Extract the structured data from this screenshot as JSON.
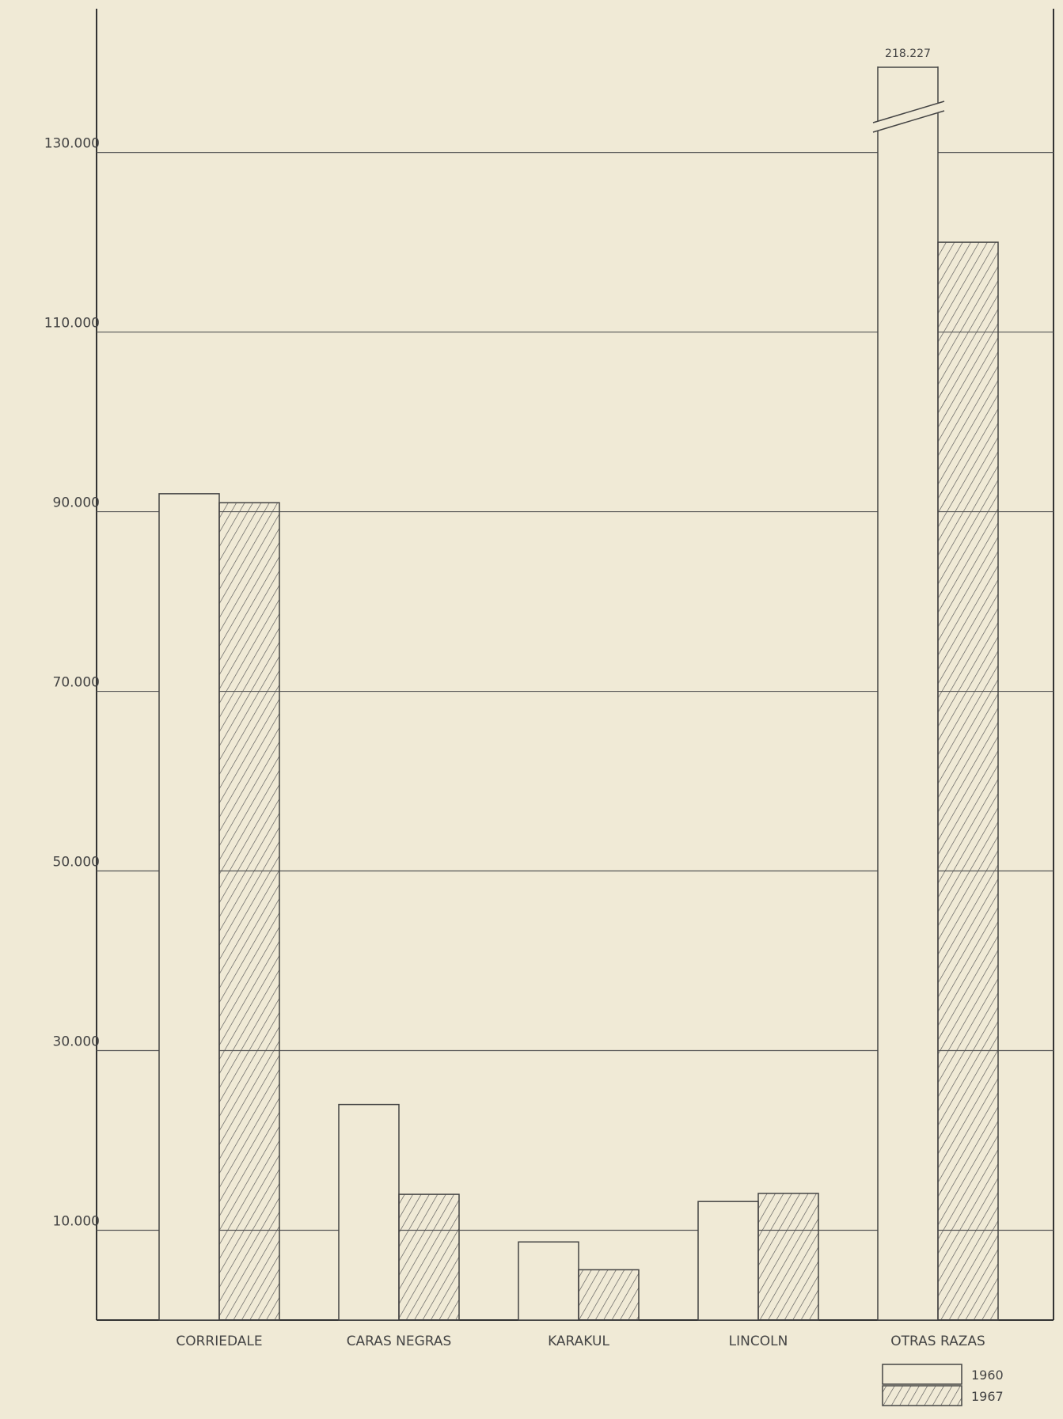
{
  "chart_data": {
    "type": "bar",
    "categories": [
      "CORRIEDALE",
      "CARAS NEGRAS",
      "KARAKUL",
      "LINCOLN",
      "OTRAS RAZAS"
    ],
    "series": [
      {
        "name": "1960",
        "color": "#f0ead6",
        "values": [
          92000,
          24000,
          8700,
          13200,
          218227
        ],
        "value_labels": [
          null,
          null,
          null,
          null,
          "218.227"
        ]
      },
      {
        "name": "1967",
        "color": "#555555",
        "values": [
          91000,
          14000,
          5600,
          14100,
          120000
        ]
      }
    ],
    "ylim": [
      0,
      146000
    ],
    "yticks": [
      {
        "value": 10000,
        "label": "10.000"
      },
      {
        "value": 30000,
        "label": "30.000"
      },
      {
        "value": 50000,
        "label": "50.000"
      },
      {
        "value": 70000,
        "label": "70.000"
      },
      {
        "value": 90000,
        "label": "90.000"
      },
      {
        "value": 110000,
        "label": "110.000"
      },
      {
        "value": 130000,
        "label": "130.000"
      }
    ],
    "grid": true,
    "legend": "bottom-right"
  }
}
